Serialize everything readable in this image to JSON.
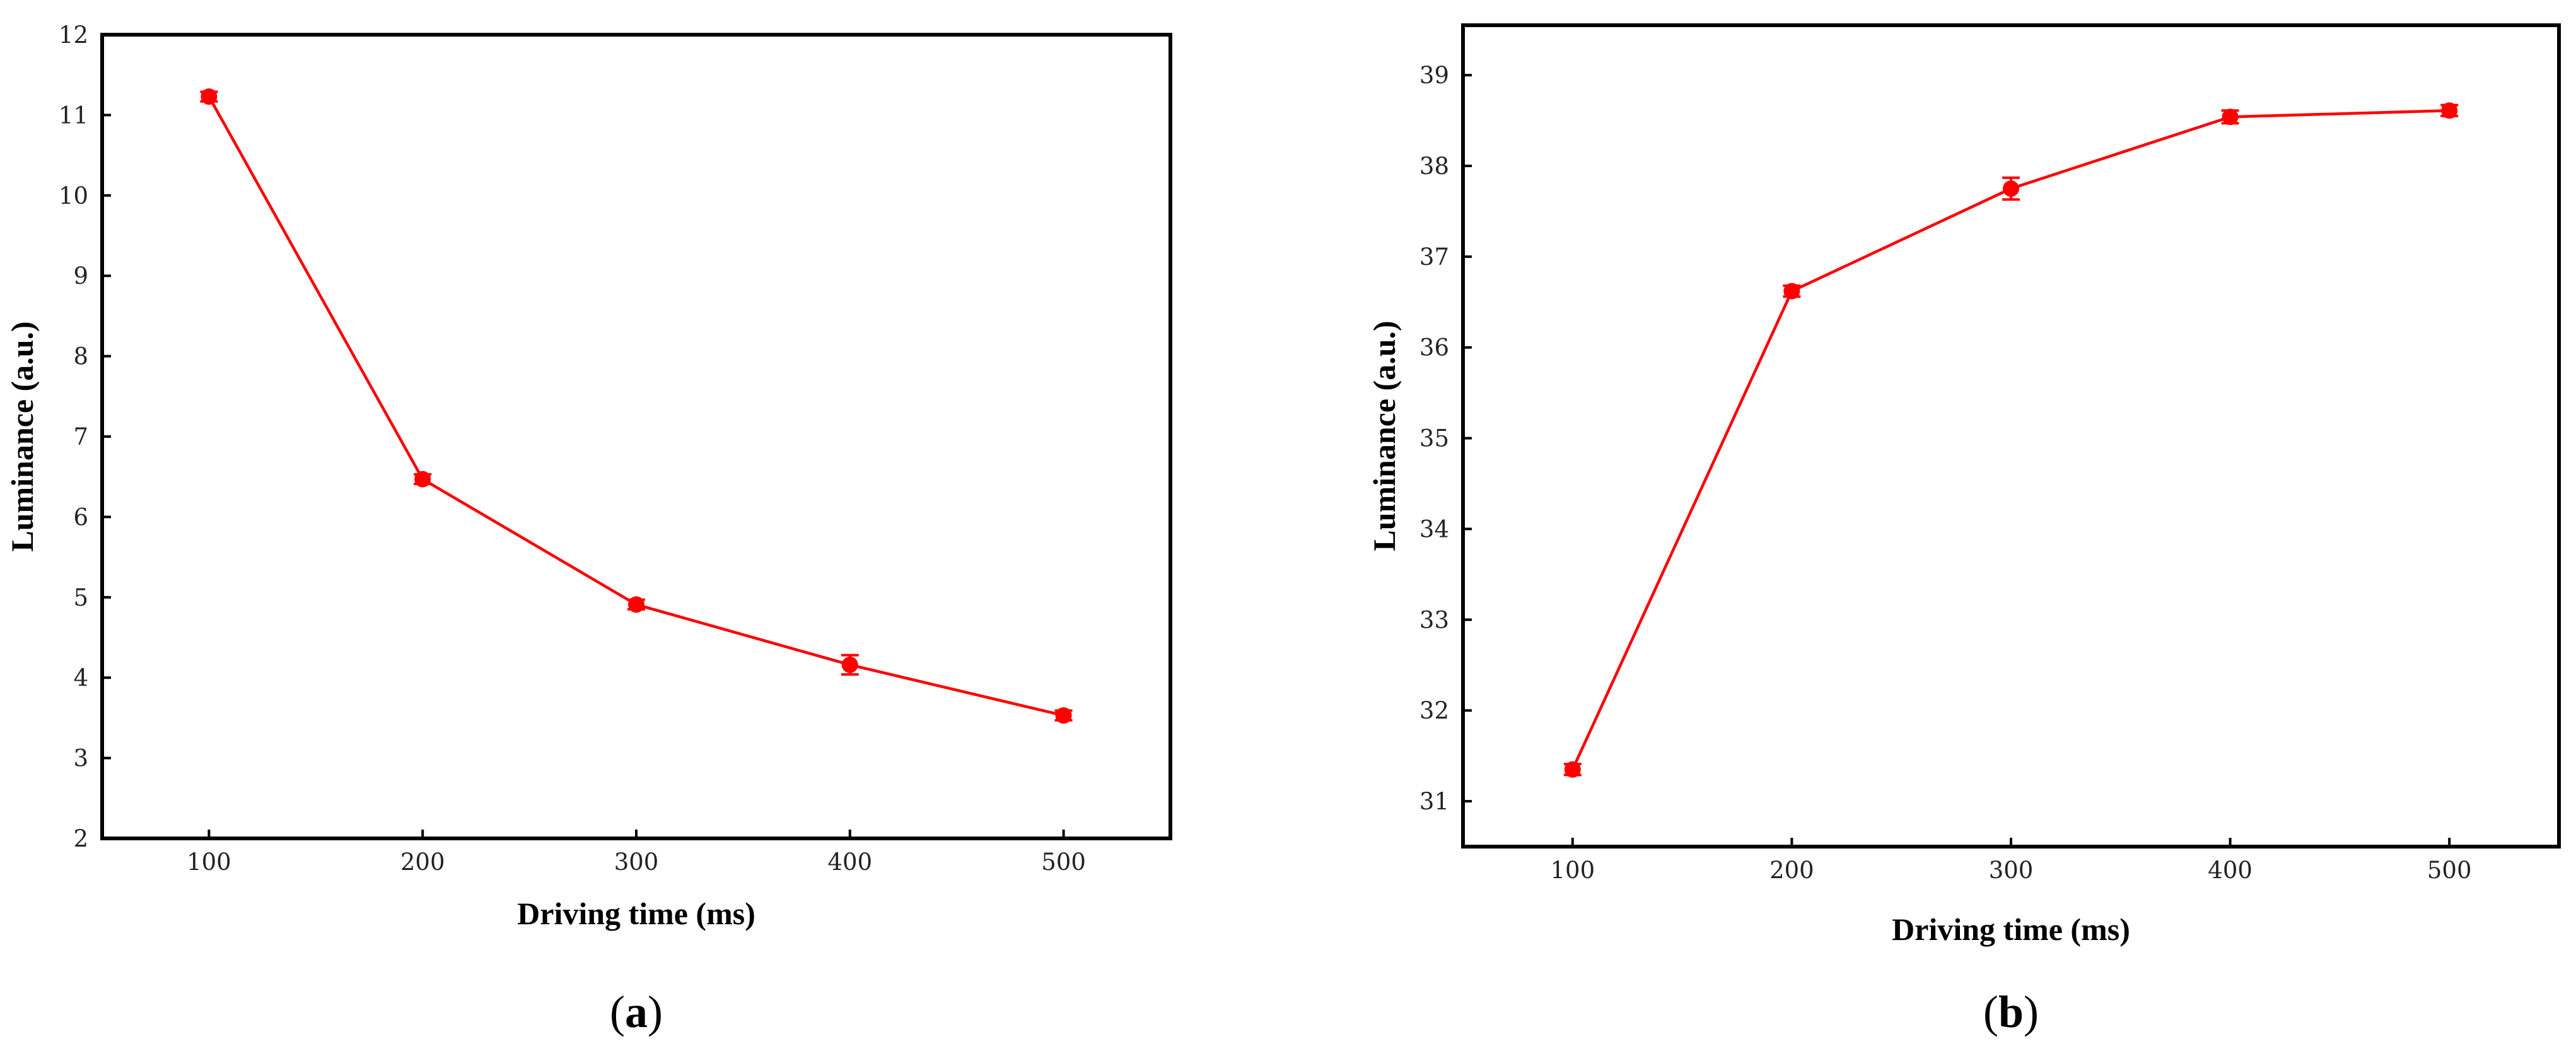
{
  "chart_data": [
    {
      "type": "line",
      "panel_label": "a",
      "xlabel": "Driving time (ms)",
      "ylabel": "Luminance (a.u.)",
      "xlim": [
        50,
        550
      ],
      "ylim": [
        2,
        12
      ],
      "xticks": [
        100,
        200,
        300,
        400,
        500
      ],
      "yticks": [
        2,
        3,
        4,
        5,
        6,
        7,
        8,
        9,
        10,
        11,
        12
      ],
      "grid": false,
      "color": "#ff0000",
      "series": [
        {
          "x": [
            100,
            200,
            300,
            400,
            500
          ],
          "y": [
            11.23,
            6.47,
            4.91,
            4.16,
            3.53
          ],
          "error": [
            0.06,
            0.06,
            0.06,
            0.12,
            0.06
          ]
        }
      ]
    },
    {
      "type": "line",
      "panel_label": "b",
      "xlabel": "Driving time (ms)",
      "ylabel": "Luminance (a.u.)",
      "xlim": [
        50,
        550
      ],
      "ylim": [
        30.5,
        39.55
      ],
      "xticks": [
        100,
        200,
        300,
        400,
        500
      ],
      "yticks": [
        31,
        32,
        33,
        34,
        35,
        36,
        37,
        38,
        39
      ],
      "grid": false,
      "color": "#ff0000",
      "series": [
        {
          "x": [
            100,
            200,
            300,
            400,
            500
          ],
          "y": [
            31.35,
            36.62,
            37.75,
            38.54,
            38.61
          ],
          "error": [
            0.06,
            0.06,
            0.12,
            0.07,
            0.06
          ]
        }
      ]
    }
  ]
}
